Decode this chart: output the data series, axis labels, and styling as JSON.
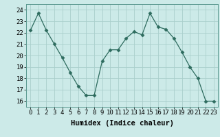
{
  "x": [
    0,
    1,
    2,
    3,
    4,
    5,
    6,
    7,
    8,
    9,
    10,
    11,
    12,
    13,
    14,
    15,
    16,
    17,
    18,
    19,
    20,
    21,
    22,
    23
  ],
  "y": [
    22.2,
    23.7,
    22.2,
    21.0,
    19.8,
    18.5,
    17.3,
    16.5,
    16.5,
    19.5,
    20.5,
    20.5,
    21.5,
    22.1,
    21.8,
    23.7,
    22.5,
    22.3,
    21.5,
    20.3,
    19.0,
    18.0,
    16.0,
    16.0
  ],
  "line_color": "#2d6b5e",
  "marker": "D",
  "marker_size": 2.5,
  "bg_color": "#cceae8",
  "grid_color": "#aacfcc",
  "xlabel": "Humidex (Indice chaleur)",
  "xlim": [
    -0.5,
    23.5
  ],
  "ylim": [
    15.5,
    24.5
  ],
  "yticks": [
    16,
    17,
    18,
    19,
    20,
    21,
    22,
    23,
    24
  ],
  "xtick_labels": [
    "0",
    "1",
    "2",
    "3",
    "4",
    "5",
    "6",
    "7",
    "8",
    "9",
    "10",
    "11",
    "12",
    "13",
    "14",
    "15",
    "16",
    "17",
    "18",
    "19",
    "20",
    "21",
    "22",
    "23"
  ],
  "font_size": 6.5,
  "xlabel_font_size": 7.5,
  "lw": 0.9
}
